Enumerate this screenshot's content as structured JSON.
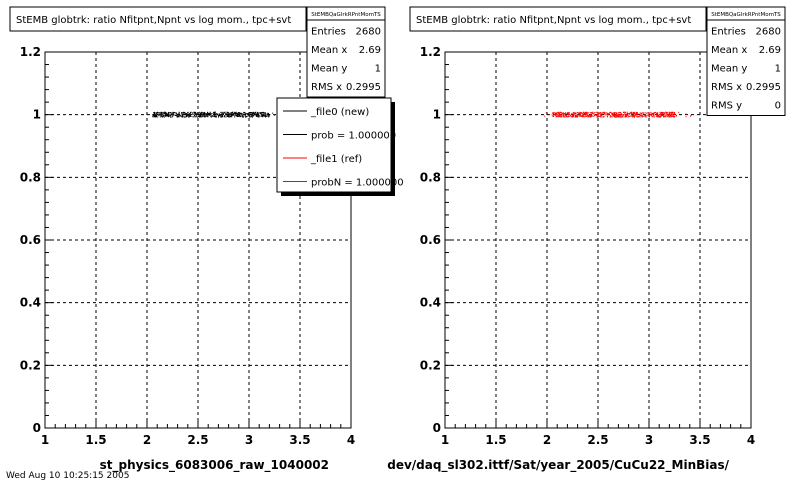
{
  "canvas": {
    "footer_text": "Wed Aug 10 10:25:15 2005"
  },
  "chart_data": [
    {
      "type": "scatter",
      "title": "StEMB globtrk: ratio Nfitpnt,Npnt vs log mom., tpc+svt",
      "xlabel": "st_physics_6083006_raw_1040002",
      "ylabel": "",
      "xlim": [
        1,
        4
      ],
      "ylim": [
        0,
        1.2
      ],
      "x_ticks": [
        "1",
        "1.5",
        "2",
        "2.5",
        "3",
        "3.5",
        "4"
      ],
      "y_ticks": [
        "0",
        "0.2",
        "0.4",
        "0.6",
        "0.8",
        "1",
        "1.2"
      ],
      "grid": true,
      "marker_color": "#000000",
      "series": [
        {
          "name": "_file0 (new)",
          "x_range": [
            1.95,
            3.3
          ],
          "dense_range": [
            2.05,
            3.2
          ],
          "y": 1,
          "color": "#000000"
        }
      ],
      "stats": {
        "name": "StEMBQaGlrkRPntMomTS",
        "rows": [
          {
            "label": "Entries",
            "value": "2680"
          },
          {
            "label": "Mean x",
            "value": "2.69"
          },
          {
            "label": "Mean y",
            "value": "1"
          },
          {
            "label": "RMS x",
            "value": "0.2995"
          }
        ]
      },
      "legend": {
        "placement": "top-right",
        "entries": [
          {
            "label": "_file0 (new)",
            "color": "#000000"
          },
          {
            "label": "prob = 1.000000",
            "color": "#000000"
          },
          {
            "label": "_file1 (ref)",
            "color": "#ff0000"
          },
          {
            "label": "probN = 1.000000",
            "color": "#ff0000"
          }
        ]
      }
    },
    {
      "type": "scatter",
      "title": "StEMB globtrk: ratio Nfitpnt,Npnt vs log mom., tpc+svt",
      "xlabel": "dev/daq_sl302.ittf/Sat/year_2005/CuCu22_MinBias/",
      "ylabel": "",
      "xlim": [
        1,
        4
      ],
      "ylim": [
        0,
        1.2
      ],
      "x_ticks": [
        "1",
        "1.5",
        "2",
        "2.5",
        "3",
        "3.5",
        "4"
      ],
      "y_ticks": [
        "0",
        "0.2",
        "0.4",
        "0.6",
        "0.8",
        "1",
        "1.2"
      ],
      "grid": true,
      "marker_color": "#ff0000",
      "series": [
        {
          "name": "_file1 (ref)",
          "x_range": [
            1.95,
            3.5
          ],
          "dense_range": [
            2.05,
            3.25
          ],
          "y": 1,
          "color": "#ff0000"
        }
      ],
      "stats": {
        "name": "StEMBQaGlrkRPntMomTS",
        "rows": [
          {
            "label": "Entries",
            "value": "2680"
          },
          {
            "label": "Mean x",
            "value": "2.69"
          },
          {
            "label": "Mean y",
            "value": "1"
          },
          {
            "label": "RMS x",
            "value": "0.2995"
          },
          {
            "label": "RMS y",
            "value": "0"
          }
        ]
      }
    }
  ]
}
